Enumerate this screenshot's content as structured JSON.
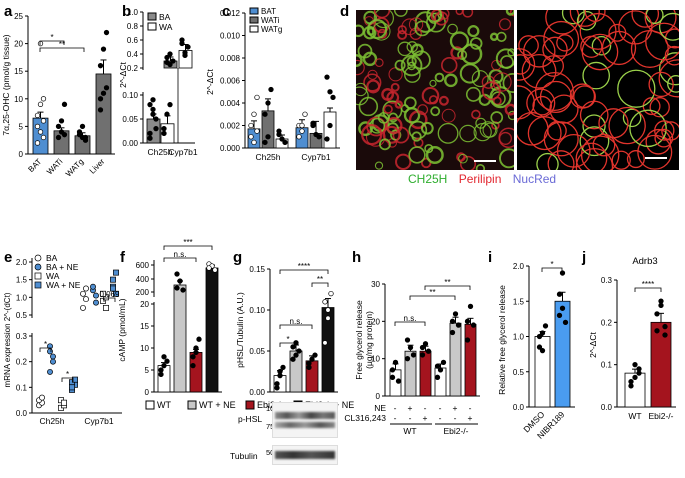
{
  "panels": {
    "a": "a",
    "b": "b",
    "c": "c",
    "d": "d",
    "e": "e",
    "f": "f",
    "g": "g",
    "h": "h",
    "i": "i",
    "j": "j"
  },
  "colors": {
    "bat": "#4f8ed1",
    "wati": "#707070",
    "watg": "#707070",
    "liver": "#707070",
    "ba": "#8a8a8a",
    "wa": "#ffffff",
    "wt": "#ffffff",
    "wt_ne": "#c8c8c8",
    "ebi": "#a4141e",
    "ebi_ne": "#111111",
    "dmso": "#ffffff",
    "nibr": "#4a9cf0"
  },
  "micro_labels": {
    "ch25h": "CH25H",
    "perilipin": "Perilipin",
    "nucred": "NucRed"
  },
  "blot": {
    "phsl": "p-HSL",
    "tubulin": "Tubulin",
    "kda100": "100 kDa",
    "kda75": "75 kDa",
    "kda50": "50 kDa"
  },
  "chart_data": [
    {
      "panel": "a",
      "type": "bar",
      "categories": [
        "BAT",
        "WATi",
        "WATg",
        "Liver"
      ],
      "values": [
        6.5,
        4.2,
        3.3,
        14.5
      ],
      "ylabel": "7α,25-OHC (pmol/g tissue)",
      "ylim": [
        0,
        25
      ],
      "yticks": [
        "0",
        "5",
        "10",
        "15",
        "20",
        "25"
      ],
      "annotations": [
        "*",
        "**"
      ]
    },
    {
      "panel": "b",
      "type": "bar",
      "categories": [
        "Ch25h",
        "Cyp7b1"
      ],
      "series": [
        {
          "name": "BA",
          "values": [
            0.05,
            0.3
          ]
        },
        {
          "name": "WA",
          "values": [
            0.04,
            0.45
          ]
        }
      ],
      "ylabel": "2^-ΔCt",
      "ylim": [
        0,
        1.0
      ],
      "yticks": [
        "0.00",
        "0.05",
        "0.10",
        "0.2",
        "0.4",
        "0.6",
        "0.8",
        "1.0"
      ]
    },
    {
      "panel": "c",
      "type": "bar",
      "categories": [
        "Ch25h",
        "Cyp7b1"
      ],
      "series": [
        {
          "name": "BAT",
          "values": [
            0.0017,
            0.0018
          ]
        },
        {
          "name": "WATi",
          "values": [
            0.0033,
            0.0013
          ]
        },
        {
          "name": "WATg",
          "values": [
            0.0008,
            0.0032
          ]
        }
      ],
      "ylabel": "2^-ΔCt",
      "ylim": [
        0,
        0.012
      ],
      "yticks": [
        "0.000",
        "0.002",
        "0.004",
        "0.006",
        "0.008",
        "0.010",
        "0.012"
      ]
    },
    {
      "panel": "e",
      "type": "scatter",
      "categories": [
        "Ch25h",
        "Cyp7b1"
      ],
      "series": [
        {
          "name": "BA",
          "values": [
            0.05,
            1.05
          ]
        },
        {
          "name": "BA + NE",
          "values": [
            0.22,
            1.15
          ]
        },
        {
          "name": "WA",
          "values": [
            0.04,
            0.95
          ]
        },
        {
          "name": "WA + NE",
          "values": [
            0.12,
            1.3
          ]
        }
      ],
      "ylabel": "mRNA expression 2^-(dCt)",
      "ylim": [
        0,
        2.0
      ],
      "yticks": [
        "0.0",
        "0.1",
        "0.2",
        "0.3",
        "0.5",
        "1.0",
        "1.5",
        "2.0"
      ],
      "annotations": [
        "*",
        "*",
        "0.069"
      ]
    },
    {
      "panel": "f",
      "type": "bar",
      "categories": [
        "WT",
        "WT + NE",
        "Ebi2-/-",
        "Ebi2-/- + NE"
      ],
      "values": [
        6,
        290,
        9,
        540
      ],
      "ylabel": "cAMP (pmol/mL)",
      "ylim": [
        0,
        600
      ],
      "yticks": [
        "0",
        "5",
        "10",
        "15",
        "20",
        "200",
        "400",
        "600"
      ],
      "annotations": [
        "n.s.",
        "***"
      ]
    },
    {
      "panel": "g",
      "type": "bar",
      "categories": [
        "WT",
        "WT + NE",
        "Ebi2-/-",
        "Ebi2-/- + NE"
      ],
      "values": [
        0.02,
        0.05,
        0.038,
        0.103
      ],
      "ylabel": "pHSL/Tubulin (A.U.)",
      "ylim": [
        0,
        0.15
      ],
      "yticks": [
        "0.00",
        "0.05",
        "0.10",
        "0.15"
      ],
      "annotations": [
        "n.s.",
        "*",
        "****",
        "**"
      ]
    },
    {
      "panel": "h",
      "type": "bar",
      "categories": [
        "WT",
        "WT + NE",
        "WT + CL316,243",
        "Ebi2-/-",
        "Ebi2-/- + NE",
        "Ebi2-/- + CL316,243"
      ],
      "values": [
        7,
        12,
        12,
        7.5,
        19.5,
        19.2
      ],
      "ylabel": "Free glycerol release (μg/mg protein)",
      "ylim": [
        0,
        30
      ],
      "yticks": [
        "0",
        "10",
        "20",
        "30"
      ],
      "annotations": [
        "n.s.",
        "**",
        "**"
      ],
      "row_labels": [
        "NE",
        "CL316,243"
      ],
      "ne_row": [
        "-",
        "+",
        "-",
        "-",
        "+",
        "-"
      ],
      "cl_row": [
        "-",
        "-",
        "+",
        "-",
        "-",
        "+"
      ],
      "groups": [
        "WT",
        "Ebi2-/-"
      ]
    },
    {
      "panel": "i",
      "type": "bar",
      "categories": [
        "DMSO",
        "NIBR189"
      ],
      "values": [
        1.0,
        1.5
      ],
      "ylabel": "Relative free glycerol release",
      "ylim": [
        0,
        2.0
      ],
      "yticks": [
        "0.0",
        "0.5",
        "1.0",
        "1.5",
        "2.0"
      ],
      "annotations": [
        "*"
      ]
    },
    {
      "panel": "j",
      "type": "bar",
      "title": "Adrb3",
      "categories": [
        "WT",
        "Ebi2-/-"
      ],
      "values": [
        0.08,
        0.2
      ],
      "ylabel": "2^-ΔCt",
      "ylim": [
        0,
        0.3
      ],
      "yticks": [
        "0.0",
        "0.1",
        "0.2",
        "0.3"
      ],
      "annotations": [
        "****"
      ]
    }
  ],
  "legend_fg": [
    "WT",
    "WT + NE",
    "Ebi2-/-",
    "Ebi2-/- + NE"
  ],
  "legend_b": [
    "BA",
    "WA"
  ],
  "legend_c": [
    "BAT",
    "WATi",
    "WATg"
  ],
  "legend_e": [
    "BA",
    "BA + NE",
    "WA",
    "WA + NE"
  ]
}
